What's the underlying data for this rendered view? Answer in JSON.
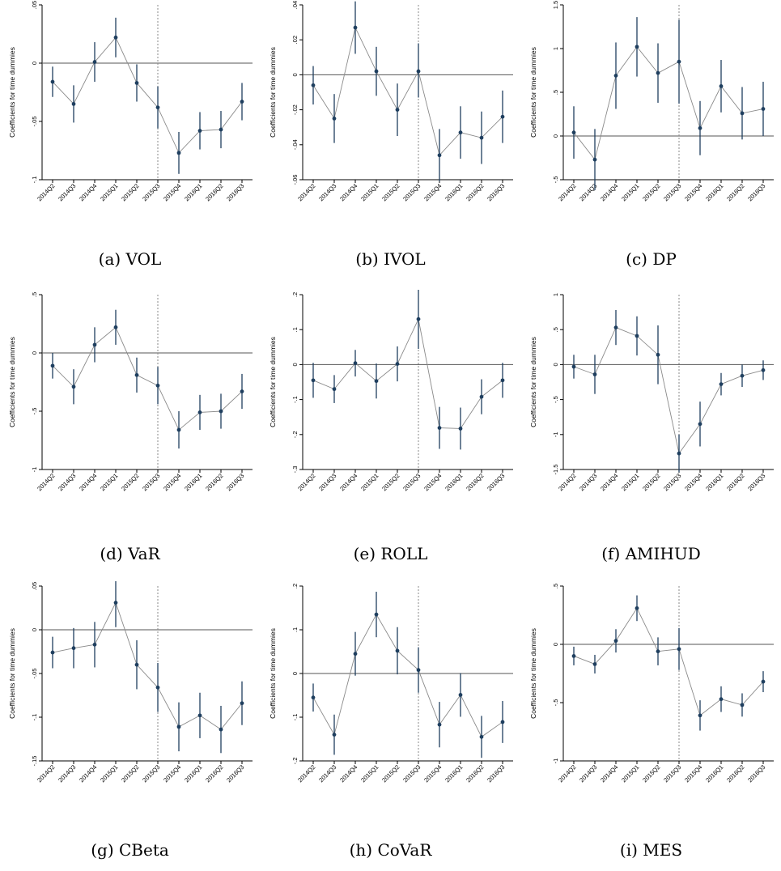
{
  "chart_data": [
    {
      "type": "scatter",
      "caption": "(a) VOL",
      "ylabel": "Coefficients for time dummies",
      "categories": [
        "2014Q2",
        "2014Q3",
        "2014Q4",
        "2015Q1",
        "2015Q2",
        "2015Q3",
        "2015Q4",
        "2016Q1",
        "2016Q2",
        "2016Q3"
      ],
      "yticks": [
        -0.1,
        -0.05,
        0,
        0.05
      ],
      "ytick_labels": [
        "-.1",
        "-.05",
        "0",
        ".05"
      ],
      "ylim": [
        -0.1,
        0.05
      ],
      "vline_category": "2015Q3",
      "values": [
        -0.016,
        -0.035,
        0.001,
        0.022,
        -0.017,
        -0.038,
        -0.077,
        -0.058,
        -0.057,
        -0.033
      ],
      "ci_low": [
        -0.029,
        -0.051,
        -0.016,
        0.005,
        -0.033,
        -0.056,
        -0.095,
        -0.074,
        -0.073,
        -0.049
      ],
      "ci_high": [
        -0.003,
        -0.019,
        0.018,
        0.039,
        -0.001,
        -0.02,
        -0.059,
        -0.042,
        -0.041,
        -0.017
      ]
    },
    {
      "type": "scatter",
      "caption": "(b) IVOL",
      "ylabel": "Coefficients for time dummies",
      "categories": [
        "2014Q2",
        "2014Q3",
        "2014Q4",
        "2015Q1",
        "2015Q2",
        "2015Q3",
        "2015Q4",
        "2016Q1",
        "2016Q2",
        "2016Q3"
      ],
      "yticks": [
        -0.06,
        -0.04,
        -0.02,
        0,
        0.02,
        0.04
      ],
      "ytick_labels": [
        "-.06",
        "-.04",
        "-.02",
        "0",
        ".02",
        ".04"
      ],
      "ylim": [
        -0.06,
        0.04
      ],
      "vline_category": "2015Q3",
      "values": [
        -0.006,
        -0.025,
        0.027,
        0.002,
        -0.02,
        0.002,
        -0.046,
        -0.033,
        -0.036,
        -0.024
      ],
      "ci_low": [
        -0.017,
        -0.039,
        0.012,
        -0.012,
        -0.035,
        -0.013,
        -0.061,
        -0.048,
        -0.051,
        -0.039
      ],
      "ci_high": [
        0.005,
        -0.011,
        0.042,
        0.016,
        -0.005,
        0.018,
        -0.031,
        -0.018,
        -0.021,
        -0.009
      ]
    },
    {
      "type": "scatter",
      "caption": "(c) DP",
      "ylabel": "Coefficients for time dummies",
      "categories": [
        "2014Q2",
        "2014Q3",
        "2014Q4",
        "2015Q1",
        "2015Q2",
        "2015Q3",
        "2015Q4",
        "2016Q1",
        "2016Q2",
        "2016Q3"
      ],
      "yticks": [
        -0.5,
        0,
        0.5,
        1,
        1.5
      ],
      "ytick_labels": [
        "-.5",
        "0",
        ".5",
        "1",
        "1.5"
      ],
      "ylim": [
        -0.5,
        1.5
      ],
      "vline_category": "2015Q3",
      "values": [
        0.04,
        -0.27,
        0.69,
        1.02,
        0.72,
        0.85,
        0.09,
        0.57,
        0.26,
        0.31
      ],
      "ci_low": [
        -0.26,
        -0.62,
        0.31,
        0.68,
        0.38,
        0.37,
        -0.22,
        0.27,
        -0.04,
        0.0
      ],
      "ci_high": [
        0.34,
        0.08,
        1.07,
        1.36,
        1.06,
        1.33,
        0.4,
        0.87,
        0.56,
        0.62
      ]
    },
    {
      "type": "scatter",
      "caption": "(d) VaR",
      "ylabel": "Coefficients for time dummies",
      "categories": [
        "2014Q2",
        "2014Q3",
        "2014Q4",
        "2015Q1",
        "2015Q2",
        "2015Q3",
        "2015Q4",
        "2016Q1",
        "2016Q2",
        "2016Q3"
      ],
      "yticks": [
        -1,
        -0.5,
        0,
        0.5
      ],
      "ytick_labels": [
        "-1",
        "-.5",
        "0",
        ".5"
      ],
      "ylim": [
        -1,
        0.5
      ],
      "vline_category": "2015Q3",
      "values": [
        -0.11,
        -0.29,
        0.07,
        0.22,
        -0.19,
        -0.28,
        -0.66,
        -0.51,
        -0.5,
        -0.33
      ],
      "ci_low": [
        -0.22,
        -0.44,
        -0.08,
        0.07,
        -0.34,
        -0.44,
        -0.82,
        -0.66,
        -0.65,
        -0.48
      ],
      "ci_high": [
        0.0,
        -0.14,
        0.22,
        0.37,
        -0.04,
        -0.12,
        -0.5,
        -0.36,
        -0.35,
        -0.18
      ]
    },
    {
      "type": "scatter",
      "caption": "(e) ROLL",
      "ylabel": "Coefficients for time dummies",
      "categories": [
        "2014Q2",
        "2014Q3",
        "2014Q4",
        "2015Q1",
        "2015Q2",
        "2015Q3",
        "2015Q4",
        "2016Q1",
        "2016Q2",
        "2016Q3"
      ],
      "yticks": [
        -0.3,
        -0.2,
        -0.1,
        0,
        0.1,
        0.2
      ],
      "ytick_labels": [
        "-.3",
        "-.2",
        "-.1",
        "0",
        ".1",
        ".2"
      ],
      "ylim": [
        -0.3,
        0.2
      ],
      "vline_category": "2015Q3",
      "values": [
        -0.045,
        -0.07,
        0.004,
        -0.047,
        0.002,
        0.13,
        -0.181,
        -0.183,
        -0.092,
        -0.045
      ],
      "ci_low": [
        -0.095,
        -0.11,
        -0.034,
        -0.097,
        -0.048,
        0.045,
        -0.241,
        -0.243,
        -0.142,
        -0.095
      ],
      "ci_high": [
        0.005,
        -0.03,
        0.042,
        0.003,
        0.052,
        0.215,
        -0.121,
        -0.123,
        -0.042,
        0.005
      ]
    },
    {
      "type": "scatter",
      "caption": "(f) AMIHUD",
      "ylabel": "Coefficients for time dummies",
      "categories": [
        "2014Q2",
        "2014Q3",
        "2014Q4",
        "2015Q1",
        "2015Q2",
        "2015Q3",
        "2015Q4",
        "2016Q1",
        "2016Q2",
        "2016Q3"
      ],
      "yticks": [
        -1.5,
        -1,
        -0.5,
        0,
        0.5,
        1
      ],
      "ytick_labels": [
        "-1.5",
        "-1",
        "-.5",
        "0",
        ".5",
        "1"
      ],
      "ylim": [
        -1.5,
        1
      ],
      "vline_category": "2015Q3",
      "values": [
        -0.03,
        -0.14,
        0.53,
        0.41,
        0.14,
        -1.27,
        -0.85,
        -0.28,
        -0.16,
        -0.08
      ],
      "ci_low": [
        -0.2,
        -0.42,
        0.28,
        0.13,
        -0.28,
        -1.54,
        -1.17,
        -0.44,
        -0.32,
        -0.22
      ],
      "ci_high": [
        0.14,
        0.14,
        0.78,
        0.69,
        0.56,
        -1.0,
        -0.53,
        -0.12,
        0.0,
        0.06
      ]
    },
    {
      "type": "scatter",
      "caption": "(g) CBeta",
      "ylabel": "Coefficients for time dummies",
      "categories": [
        "2014Q2",
        "2014Q3",
        "2014Q4",
        "2015Q1",
        "2015Q2",
        "2015Q3",
        "2015Q4",
        "2016Q1",
        "2016Q2",
        "2016Q3"
      ],
      "yticks": [
        -0.15,
        -0.1,
        -0.05,
        0,
        0.05
      ],
      "ytick_labels": [
        "-.15",
        "-.1",
        "-.05",
        "0",
        ".05"
      ],
      "ylim": [
        -0.15,
        0.05
      ],
      "vline_category": "2015Q3",
      "values": [
        -0.026,
        -0.021,
        -0.017,
        0.031,
        -0.04,
        -0.066,
        -0.111,
        -0.098,
        -0.114,
        -0.084
      ],
      "ci_low": [
        -0.044,
        -0.044,
        -0.043,
        0.003,
        -0.068,
        -0.094,
        -0.139,
        -0.124,
        -0.141,
        -0.109
      ],
      "ci_high": [
        -0.008,
        0.002,
        0.009,
        0.059,
        -0.012,
        -0.038,
        -0.083,
        -0.072,
        -0.087,
        -0.059
      ]
    },
    {
      "type": "scatter",
      "caption": "(h) CoVaR",
      "ylabel": "Coefficients for time dummies",
      "categories": [
        "2014Q2",
        "2014Q3",
        "2014Q4",
        "2015Q1",
        "2015Q2",
        "2015Q3",
        "2015Q4",
        "2016Q1",
        "2016Q2",
        "2016Q3"
      ],
      "yticks": [
        -0.2,
        -0.1,
        0,
        0.1,
        0.2
      ],
      "ytick_labels": [
        "-.2",
        "-.1",
        "0",
        ".1",
        ".2"
      ],
      "ylim": [
        -0.2,
        0.2
      ],
      "vline_category": "2015Q3",
      "values": [
        -0.055,
        -0.14,
        0.045,
        0.135,
        0.052,
        0.008,
        -0.117,
        -0.049,
        -0.145,
        -0.111
      ],
      "ci_low": [
        -0.087,
        -0.186,
        -0.005,
        0.083,
        -0.002,
        -0.044,
        -0.169,
        -0.099,
        -0.193,
        -0.159
      ],
      "ci_high": [
        -0.023,
        -0.094,
        0.095,
        0.187,
        0.106,
        0.06,
        -0.065,
        0.001,
        -0.097,
        -0.063
      ]
    },
    {
      "type": "scatter",
      "caption": "(i) MES",
      "ylabel": "Coefficients for time dummies",
      "categories": [
        "2014Q2",
        "2014Q3",
        "2014Q4",
        "2015Q1",
        "2015Q2",
        "2015Q3",
        "2015Q4",
        "2016Q1",
        "2016Q2",
        "2016Q3"
      ],
      "yticks": [
        -1,
        -0.5,
        0,
        0.5
      ],
      "ytick_labels": [
        "-1",
        "-.5",
        "0",
        ".5"
      ],
      "ylim": [
        -1,
        0.5
      ],
      "vline_category": "2015Q3",
      "values": [
        -0.1,
        -0.17,
        0.03,
        0.31,
        -0.06,
        -0.04,
        -0.61,
        -0.47,
        -0.52,
        -0.32
      ],
      "ci_low": [
        -0.18,
        -0.25,
        -0.07,
        0.2,
        -0.18,
        -0.22,
        -0.74,
        -0.58,
        -0.62,
        -0.41
      ],
      "ci_high": [
        -0.02,
        -0.09,
        0.13,
        0.42,
        0.06,
        0.14,
        -0.48,
        -0.36,
        -0.42,
        -0.23
      ]
    }
  ],
  "colors": {
    "series": "#1f3f5f",
    "connector": "#8a8a8a",
    "axis": "#000000",
    "vline": "#888888"
  }
}
